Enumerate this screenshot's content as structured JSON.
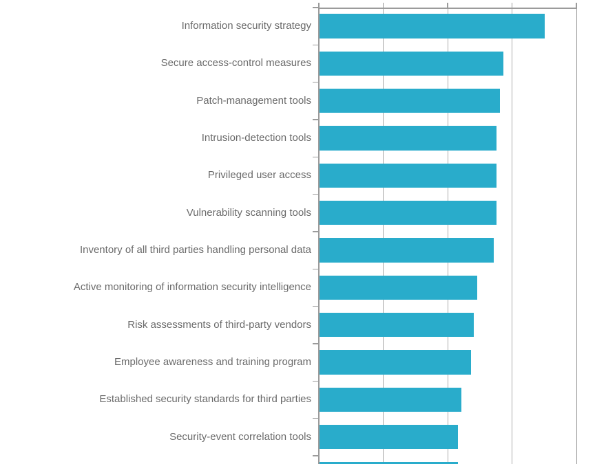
{
  "window": {
    "background_color": "#FFFFFF"
  },
  "chart": {
    "colors": {
      "bar": "#29ACCB",
      "gridline": "#ACACAC",
      "axis": "#9B9B9B",
      "label_text": "#6A6A6A",
      "background": "#FFFFFF"
    }
  },
  "chart_data": {
    "type": "bar",
    "orientation": "horizontal",
    "title": "",
    "xlabel": "",
    "ylabel": "",
    "grid": true,
    "legend": false,
    "x_axis_tick_labels_visible": false,
    "value_unit": "percent (estimated from gridlines; numeric axis labels are cut off below the screenshot)",
    "xlim": [
      0,
      80
    ],
    "gridline_interval": 20,
    "categories": [
      "Information security strategy",
      "Secure access-control measures",
      "Patch-management tools",
      "Intrusion-detection tools",
      "Privileged user access",
      "Vulnerability scanning tools",
      "Inventory of all third parties handling personal data",
      "Active monitoring of information security intelligence",
      "Risk assessments of third-party vendors",
      "Employee awareness and training program",
      "Established security standards for third parties",
      "Security-event correlation tools"
    ],
    "values": [
      70,
      57,
      56,
      55,
      55,
      55,
      54,
      49,
      48,
      47,
      44,
      43
    ],
    "partial_bottom_bar": {
      "label": "",
      "value": 43,
      "note": "A 13th bar is clipped by the bottom edge of the screenshot; its label is not visible"
    }
  }
}
